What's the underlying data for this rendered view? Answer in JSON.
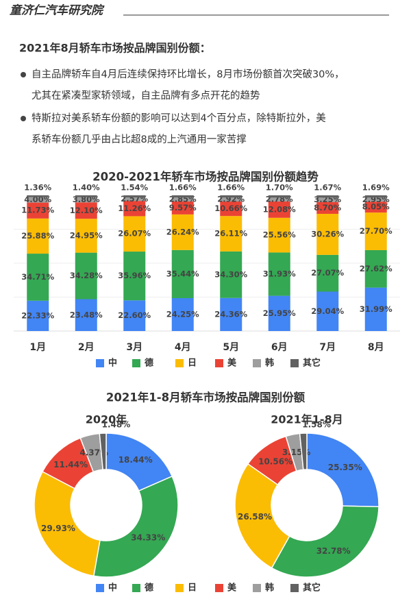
{
  "header": {
    "title": "童济仁汽车研究院"
  },
  "section": {
    "title": "2021年8月轿车市场按品牌国别份额：",
    "bullets": [
      [
        "自主品牌轿车自4月后连续保持环比增长，8月市场份额首次突破30%，",
        "尤其在紧凑型家轿领域，自主品牌有多点开花的趋势"
      ],
      [
        "特斯拉对美系轿车份额的影响可以达到4个百分点，除特斯拉外，美",
        "系轿车份额几乎由占比超8成的上汽通用一家苦撑"
      ]
    ]
  },
  "chart_data": [
    {
      "type": "bar",
      "stacked": true,
      "title": "2020-2021年轿车市场按品牌国别份额趋势",
      "categories": [
        "1月",
        "2月",
        "3月",
        "4月",
        "5月",
        "6月",
        "7月",
        "8月"
      ],
      "ylim": [
        0,
        100
      ],
      "series": [
        {
          "name": "中",
          "color": "#4285f4",
          "values": [
            22.33,
            23.48,
            22.6,
            24.25,
            24.36,
            25.95,
            29.04,
            31.99
          ],
          "value_labels": [
            "22.33%",
            "23.48%",
            "22.60%",
            "24.25%",
            "24.36%",
            "25.95%",
            "29.04%",
            "31.99%"
          ]
        },
        {
          "name": "德",
          "color": "#34a853",
          "values": [
            34.71,
            34.28,
            35.96,
            35.44,
            34.3,
            31.93,
            27.07,
            27.62
          ],
          "value_labels": [
            "34.71%",
            "34.28%",
            "35.96%",
            "35.44%",
            "34.30%",
            "31.93%",
            "27.07%",
            "27.62%"
          ]
        },
        {
          "name": "日",
          "color": "#fbbc04",
          "values": [
            25.88,
            24.95,
            26.07,
            26.24,
            26.11,
            25.56,
            30.26,
            27.7
          ],
          "value_labels": [
            "25.88%",
            "24.95%",
            "26.07%",
            "26.24%",
            "26.11%",
            "25.56%",
            "30.26%",
            "27.70%"
          ]
        },
        {
          "name": "美",
          "color": "#ea4335",
          "values": [
            11.73,
            12.1,
            11.26,
            9.57,
            10.66,
            12.08,
            8.7,
            8.05
          ],
          "value_labels": [
            "11.73%",
            "12.10%",
            "11.26%",
            "9.57%",
            "10.66%",
            "12.08%",
            "8.70%",
            "8.05%"
          ]
        },
        {
          "name": "韩",
          "color": "#9e9e9e",
          "values": [
            4.0,
            3.8,
            2.57,
            2.85,
            2.92,
            2.78,
            3.25,
            2.95
          ],
          "value_labels": [
            "4.00%",
            "3.80%",
            "2.57%",
            "2.85%",
            "2.92%",
            "2.78%",
            "3.25%",
            "2.95%"
          ]
        },
        {
          "name": "其它",
          "color": "#616161",
          "values": [
            1.36,
            1.4,
            1.54,
            1.66,
            1.66,
            1.7,
            1.67,
            1.69
          ],
          "value_labels": [
            "1.36%",
            "1.40%",
            "1.54%",
            "1.66%",
            "1.66%",
            "1.70%",
            "1.67%",
            "1.69%"
          ]
        }
      ]
    },
    {
      "type": "pie",
      "title": "2021年1-8月轿车市场按品牌国别份额",
      "subtitle": "2020年",
      "categories": [
        "中",
        "德",
        "日",
        "美",
        "韩",
        "其它"
      ],
      "colors": [
        "#4285f4",
        "#34a853",
        "#fbbc04",
        "#ea4335",
        "#9e9e9e",
        "#616161"
      ],
      "values": [
        18.44,
        34.33,
        29.93,
        11.44,
        4.37,
        1.48
      ],
      "value_labels": [
        "18.44%",
        "34.33%",
        "29.93%",
        "11.44%",
        "4.37%",
        "1.48%"
      ]
    },
    {
      "type": "pie",
      "subtitle": "2021年1-8月",
      "categories": [
        "中",
        "德",
        "日",
        "美",
        "韩",
        "其它"
      ],
      "colors": [
        "#4285f4",
        "#34a853",
        "#fbbc04",
        "#ea4335",
        "#9e9e9e",
        "#616161"
      ],
      "values": [
        25.35,
        32.78,
        26.58,
        10.56,
        3.15,
        1.58
      ],
      "value_labels": [
        "25.35%",
        "32.78%",
        "26.58%",
        "10.56%",
        "3.15%",
        "1.58%"
      ]
    }
  ]
}
